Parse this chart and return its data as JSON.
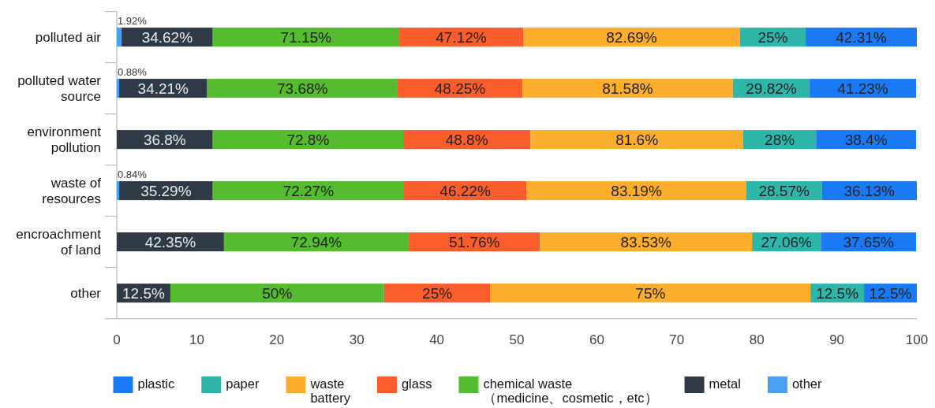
{
  "chart_data": {
    "type": "bar",
    "orientation": "horizontal",
    "stacked": true,
    "categories": [
      "polluted air",
      "polluted water source",
      "environment pollution",
      "waste of resources",
      "encroachment of land",
      "other"
    ],
    "series": [
      {
        "name": "other",
        "color": "#4a9ff5",
        "values": [
          0.6,
          0.3,
          null,
          0.3,
          null,
          null
        ]
      },
      {
        "name": "metal",
        "color": "#2e3a46",
        "values": [
          11.4,
          11.0,
          12.0,
          11.7,
          13.4,
          6.7
        ]
      },
      {
        "name": "chemical waste\n（medicine、cosmetic，etc）",
        "color": "#55bb2f",
        "values": [
          23.3,
          23.8,
          23.8,
          23.9,
          23.1,
          26.7
        ]
      },
      {
        "name": "glass",
        "color": "#fa5d2c",
        "values": [
          15.5,
          15.6,
          15.9,
          15.3,
          16.4,
          13.3
        ]
      },
      {
        "name": "waste\nbattery",
        "color": "#fbad2c",
        "values": [
          27.1,
          26.3,
          26.6,
          27.5,
          26.5,
          40
        ]
      },
      {
        "name": "paper",
        "color": "#2db6a9",
        "values": [
          8.2,
          9.6,
          9.1,
          9.4,
          8.6,
          6.7
        ]
      },
      {
        "name": "plastic",
        "color": "#1a7af5",
        "values": [
          13.9,
          13.3,
          12.5,
          11.9,
          11.9,
          6.6
        ]
      }
    ],
    "annotations": [
      "1.92%",
      "34.62%",
      "71.15%",
      "47.12%",
      "82.69%",
      "25%",
      "42.31%",
      "0.88%",
      "34.21%",
      "73.68%",
      "48.25%",
      "81.58%",
      "29.82%",
      "41.23%",
      "36.8%",
      "72.8%",
      "48.8%",
      "81.6%",
      "28%",
      "38.4%",
      "0.84%",
      "35.29%",
      "72.27%",
      "46.22%",
      "83.19%",
      "28.57%",
      "36.13%",
      "42.35%",
      "72.94%",
      "51.76%",
      "83.53%",
      "27.06%",
      "37.65%",
      "12.5%",
      "50%",
      "25%",
      "75%",
      "12.5%",
      "12.5%"
    ],
    "xlim": [
      0,
      100
    ],
    "xticks": [
      0,
      10,
      20,
      30,
      40,
      50,
      60,
      70,
      80,
      90,
      100
    ],
    "legend": "bottom"
  }
}
